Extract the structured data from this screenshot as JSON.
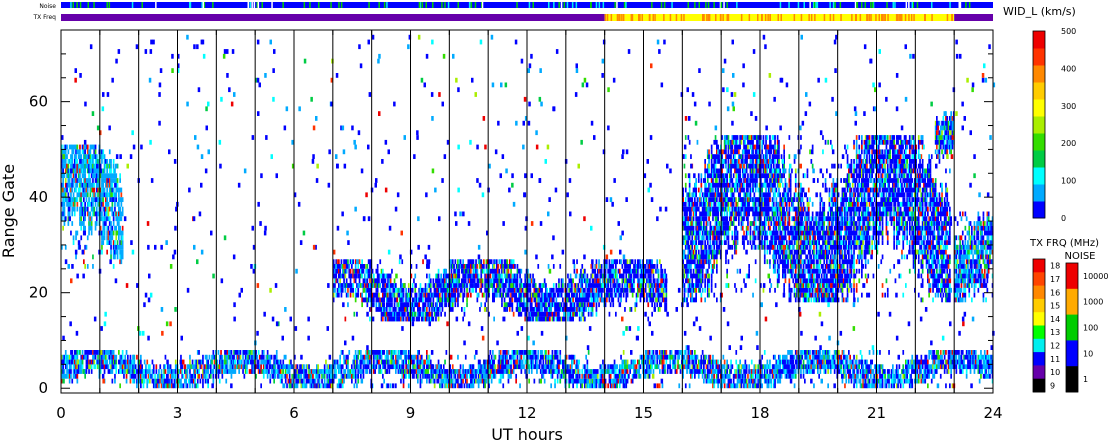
{
  "strips": {
    "noise_label": "Noise",
    "txfreq_label": "TX Freq"
  },
  "chart_data": {
    "type": "heatmap",
    "title": "",
    "xlabel": "UT hours",
    "ylabel": "Range Gate",
    "xlim": [
      0,
      24
    ],
    "ylim": [
      -1,
      75
    ],
    "x_ticks": [
      0,
      3,
      6,
      9,
      12,
      15,
      18,
      21,
      24
    ],
    "y_ticks": [
      0,
      20,
      40,
      60
    ],
    "scan_boundaries_ut": [
      1,
      2,
      3,
      4,
      5,
      6,
      7,
      8,
      9,
      10,
      11,
      12,
      13,
      14,
      15,
      16,
      17,
      18,
      19,
      20,
      21,
      22,
      23
    ],
    "width_colorbar": {
      "label": "WID_L (km/s)",
      "range": [
        0,
        500
      ],
      "ticks": [
        0,
        100,
        200,
        300,
        400,
        500
      ],
      "colors": [
        "#0000ff",
        "#00aaff",
        "#00ffff",
        "#00cc44",
        "#33dd00",
        "#aaee00",
        "#ffff00",
        "#ffcc00",
        "#ff8800",
        "#ff3300",
        "#ee0000"
      ]
    },
    "txfreq_colorbar": {
      "label": "TX FRQ (MHz)",
      "ticks": [
        "18",
        "17",
        "16",
        "15",
        "14",
        "13",
        "12",
        "11",
        "10",
        "9"
      ],
      "colors": [
        "#ee0000",
        "#ff4400",
        "#ff8800",
        "#ffcc00",
        "#ffff00",
        "#00ff00",
        "#00eeee",
        "#0000ff",
        "#6600aa",
        "#000000"
      ]
    },
    "noise_colorbar": {
      "label": "NOISE",
      "ticks": [
        "10000",
        "1000",
        "100",
        "10",
        "1"
      ],
      "colors": [
        "#ee0000",
        "#ffaa00",
        "#00cc00",
        "#0000ff",
        "#000000"
      ]
    },
    "features": [
      {
        "name": "near-range band",
        "ut": [
          0,
          24
        ],
        "gates": [
          0,
          7
        ],
        "dominant_width_kms": 30
      },
      {
        "name": "early cluster",
        "ut": [
          0,
          1.6
        ],
        "gates": [
          25,
          50
        ],
        "dominant_width_kms": 40
      },
      {
        "name": "mid-day band",
        "ut": [
          7,
          15.6
        ],
        "gates": [
          14,
          26
        ],
        "dominant_width_kms": 20
      },
      {
        "name": "afternoon echoes",
        "ut": [
          16,
          22.9
        ],
        "gates": [
          18,
          52
        ],
        "dominant_width_kms": 20
      },
      {
        "name": "late cluster",
        "ut": [
          23,
          24
        ],
        "gates": [
          18,
          36
        ],
        "dominant_width_kms": 30
      },
      {
        "name": "upper patch",
        "ut": [
          22.5,
          23
        ],
        "gates": [
          48,
          58
        ],
        "dominant_width_kms": 30
      }
    ],
    "txfreq_strip_segments": [
      {
        "ut": [
          0,
          14
        ],
        "mhz": 10
      },
      {
        "ut": [
          14,
          23
        ],
        "mhz": 14
      },
      {
        "ut": [
          23,
          24
        ],
        "mhz": 10
      }
    ]
  }
}
